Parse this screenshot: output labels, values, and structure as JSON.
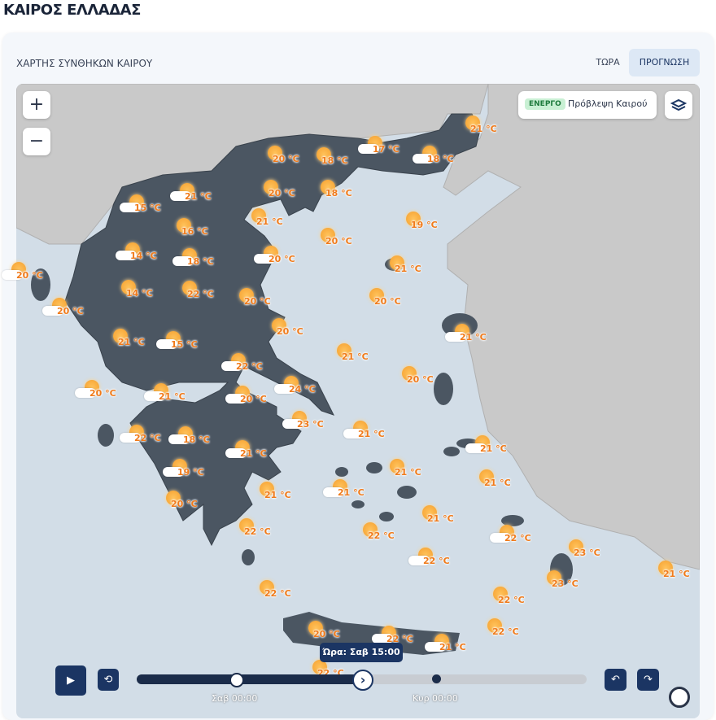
{
  "header": {
    "title": "ΚΑΙΡΟΣ ΕΛΛΑΔΑΣ"
  },
  "card": {
    "title": "ΧΑΡΤΗΣ ΣΥΝΘΗΚΩΝ ΚΑΙΡΟΥ",
    "tabs": [
      "ΤΩΡΑ",
      "ΠΡΟΓΝΩΣΗ"
    ]
  },
  "map": {
    "zoom_in": "+",
    "zoom_out": "−",
    "layer_badge": "ΕΝΕΡΓΟ",
    "layer_name": "Πρόβλεψη Καιρού",
    "markers": [
      "21 °C",
      "17 °C",
      "18 °C",
      "20 °C",
      "18 °C",
      "20 °C",
      "18 °C",
      "15 °C",
      "21 °C",
      "21 °C",
      "19 °C",
      "16 °C",
      "20 °C",
      "14 °C",
      "18 °C",
      "20 °C",
      "21 °C",
      "20 °C",
      "14 °C",
      "22 °C",
      "20 °C",
      "20 °C",
      "20 °C",
      "20 °C",
      "21 °C",
      "21 °C",
      "15 °C",
      "21 °C",
      "22 °C",
      "20 °C",
      "24 °C",
      "20 °C",
      "21 °C",
      "20 °C",
      "23 °C",
      "21 °C",
      "22 °C",
      "18 °C",
      "21 °C",
      "21 °C",
      "21 °C",
      "19 °C",
      "21 °C",
      "21 °C",
      "21 °C",
      "20 °C",
      "21 °C",
      "22 °C",
      "22 °C",
      "22 °C",
      "23 °C",
      "22 °C",
      "21 °C",
      "23 °C",
      "22 °C",
      "22 °C",
      "22 °C",
      "20 °C",
      "22 °C",
      "21 °C",
      "22 °C"
    ]
  },
  "timeline": {
    "current": "Ώρα: Σαβ 15:00",
    "day_labels": [
      "Σαβ 00:00",
      "Κυρ 00:00"
    ]
  }
}
